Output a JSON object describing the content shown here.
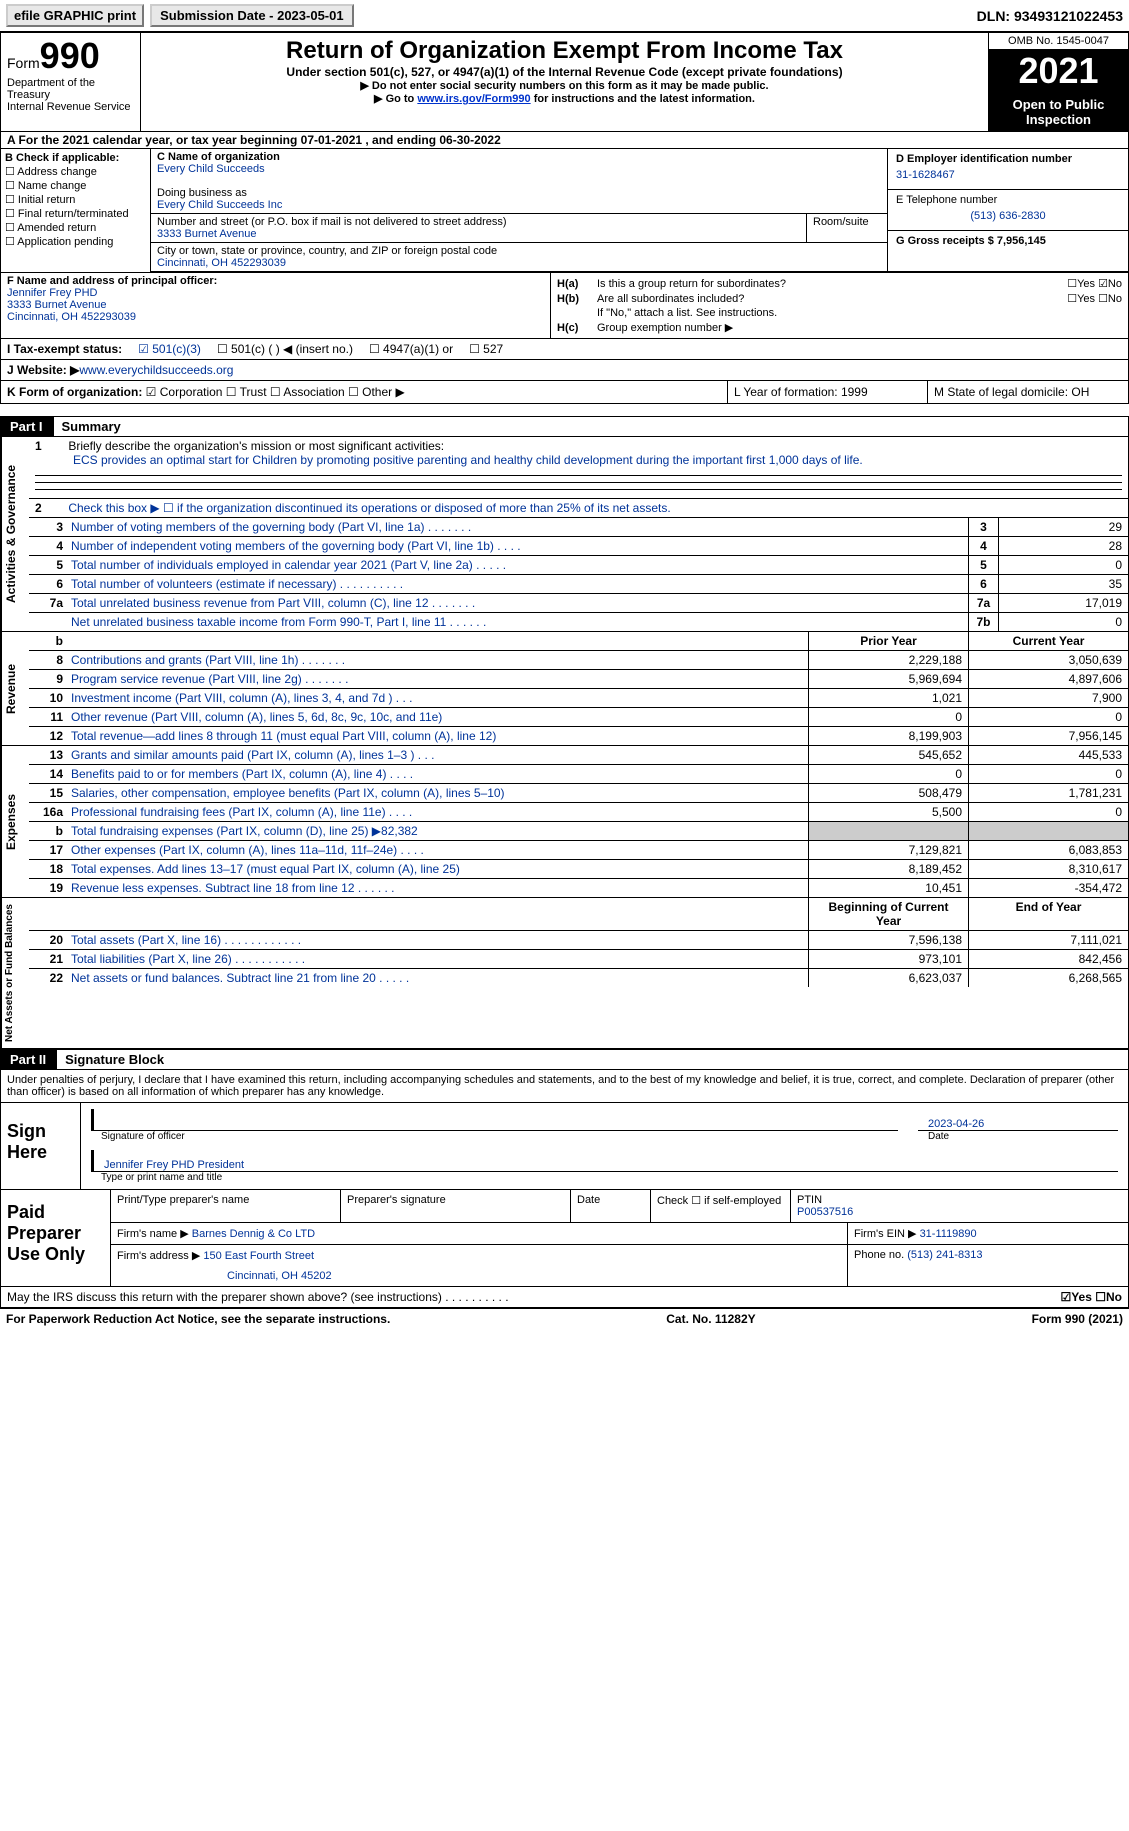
{
  "topbar": {
    "efile_label": "efile GRAPHIC print",
    "submission_label": "Submission Date - 2023-05-01",
    "dln_label": "DLN: 93493121022453"
  },
  "header": {
    "form_label": "Form",
    "form_num": "990",
    "dept": "Department of the Treasury",
    "irs": "Internal Revenue Service",
    "title": "Return of Organization Exempt From Income Tax",
    "subtitle": "Under section 501(c), 527, or 4947(a)(1) of the Internal Revenue Code (except private foundations)",
    "note1": "▶ Do not enter social security numbers on this form as it may be made public.",
    "note2_pre": "▶ Go to ",
    "note2_link": "www.irs.gov/Form990",
    "note2_post": " for instructions and the latest information.",
    "omb": "OMB No. 1545-0047",
    "year": "2021",
    "open": "Open to Public Inspection"
  },
  "rowA": "A For the 2021 calendar year, or tax year beginning 07-01-2021    , and ending 06-30-2022",
  "colB": {
    "header": "B Check if applicable:",
    "items": [
      "☐ Address change",
      "☐ Name change",
      "☐ Initial return",
      "☐ Final return/terminated",
      "☐ Amended return",
      "☐ Application pending"
    ]
  },
  "boxC": {
    "name_label": "C Name of organization",
    "name": "Every Child Succeeds",
    "dba_label": "Doing business as",
    "dba": "Every Child Succeeds Inc",
    "street_label": "Number and street (or P.O. box if mail is not delivered to street address)",
    "street": "3333 Burnet Avenue",
    "room_label": "Room/suite",
    "city_label": "City or town, state or province, country, and ZIP or foreign postal code",
    "city": "Cincinnati, OH  452293039"
  },
  "boxDEG": {
    "d_label": "D Employer identification number",
    "d_val": "31-1628467",
    "e_label": "E Telephone number",
    "e_val": "(513) 636-2830",
    "g_label": "G Gross receipts $ 7,956,145"
  },
  "rowF": {
    "label": "F Name and address of principal officer:",
    "name": "Jennifer Frey PHD",
    "street": "3333 Burnet Avenue",
    "city": "Cincinnati, OH  452293039"
  },
  "rowH": {
    "ha_label": "H(a)",
    "ha_text": "Is this a group return for subordinates?",
    "ha_boxes": "☐Yes ☑No",
    "hb_label": "H(b)",
    "hb_text": "Are all subordinates included?",
    "hb_boxes": "☐Yes ☐No",
    "hb_note": "If \"No,\" attach a list. See instructions.",
    "hc_label": "H(c)",
    "hc_text": "Group exemption number ▶"
  },
  "rowI": {
    "label": "I    Tax-exempt status:",
    "opt1": "☑ 501(c)(3)",
    "opt2": "☐  501(c) (   ) ◀ (insert no.)",
    "opt3": "☐  4947(a)(1) or",
    "opt4": "☐  527"
  },
  "rowJ": {
    "label": "J   Website: ▶",
    "val": "  www.everychildsucceeds.org"
  },
  "rowK": {
    "label": "K Form of organization:",
    "opts": "☑ Corporation ☐ Trust ☐ Association ☐ Other ▶",
    "L": "L Year of formation: 1999",
    "M": "M State of legal domicile: OH"
  },
  "part1": {
    "num": "Part I",
    "title": "Summary"
  },
  "side_labels": {
    "ag": "Activities & Governance",
    "rev": "Revenue",
    "exp": "Expenses",
    "net": "Net Assets or Fund Balances"
  },
  "mission": {
    "ln": "1",
    "label": "Briefly describe the organization's mission or most significant activities:",
    "text": "ECS provides an optimal start for Children by promoting positive parenting and healthy child development during the important first 1,000 days of life."
  },
  "line2": {
    "ln": "2",
    "text": "Check this box ▶ ☐ if the organization discontinued its operations or disposed of more than 25% of its net assets."
  },
  "ag_rows": [
    {
      "ln": "3",
      "desc": "Number of voting members of the governing body (Part VI, line 1a)  .    .    .    .    .    .    .",
      "n": "3",
      "v": "29"
    },
    {
      "ln": "4",
      "desc": "Number of independent voting members of the governing body (Part VI, line 1b)  .    .    .    .",
      "n": "4",
      "v": "28"
    },
    {
      "ln": "5",
      "desc": "Total number of individuals employed in calendar year 2021 (Part V, line 2a)  .    .    .    .    .",
      "n": "5",
      "v": "0"
    },
    {
      "ln": "6",
      "desc": "Total number of volunteers (estimate if necessary)    .    .    .    .    .    .    .    .    .    .",
      "n": "6",
      "v": "35"
    },
    {
      "ln": "7a",
      "desc": "Total unrelated business revenue from Part VIII, column (C), line 12  .    .    .    .    .    .    .",
      "n": "7a",
      "v": "17,019"
    },
    {
      "ln": "",
      "desc": "Net unrelated business taxable income from Form 990-T, Part I, line 11  .    .    .    .    .    .",
      "n": "7b",
      "v": "0"
    }
  ],
  "col_headers": {
    "b": "b",
    "prior": "Prior Year",
    "curr": "Current Year"
  },
  "rev_rows": [
    {
      "ln": "8",
      "desc": "Contributions and grants (Part VIII, line 1h)    .    .    .    .    .    .    .",
      "p": "2,229,188",
      "c": "3,050,639"
    },
    {
      "ln": "9",
      "desc": "Program service revenue (Part VIII, line 2g)    .    .    .    .    .    .    .",
      "p": "5,969,694",
      "c": "4,897,606"
    },
    {
      "ln": "10",
      "desc": "Investment income (Part VIII, column (A), lines 3, 4, and 7d )    .    .    .",
      "p": "1,021",
      "c": "7,900"
    },
    {
      "ln": "11",
      "desc": "Other revenue (Part VIII, column (A), lines 5, 6d, 8c, 9c, 10c, and 11e)",
      "p": "0",
      "c": "0"
    },
    {
      "ln": "12",
      "desc": "Total revenue—add lines 8 through 11 (must equal Part VIII, column (A), line 12)",
      "p": "8,199,903",
      "c": "7,956,145"
    }
  ],
  "exp_rows": [
    {
      "ln": "13",
      "desc": "Grants and similar amounts paid (Part IX, column (A), lines 1–3 )   .    .    .",
      "p": "545,652",
      "c": "445,533"
    },
    {
      "ln": "14",
      "desc": "Benefits paid to or for members (Part IX, column (A), line 4)   .    .    .    .",
      "p": "0",
      "c": "0"
    },
    {
      "ln": "15",
      "desc": "Salaries, other compensation, employee benefits (Part IX, column (A), lines 5–10)",
      "p": "508,479",
      "c": "1,781,231"
    },
    {
      "ln": "16a",
      "desc": "Professional fundraising fees (Part IX, column (A), line 11e)   .    .    .    .",
      "p": "5,500",
      "c": "0"
    },
    {
      "ln": "b",
      "desc": "Total fundraising expenses (Part IX, column (D), line 25) ▶82,382",
      "p": "grey",
      "c": "grey"
    },
    {
      "ln": "17",
      "desc": "Other expenses (Part IX, column (A), lines 11a–11d, 11f–24e)   .    .    .    .",
      "p": "7,129,821",
      "c": "6,083,853"
    },
    {
      "ln": "18",
      "desc": "Total expenses. Add lines 13–17 (must equal Part IX, column (A), line 25)",
      "p": "8,189,452",
      "c": "8,310,617"
    },
    {
      "ln": "19",
      "desc": "Revenue less expenses. Subtract line 18 from line 12  .    .    .    .    .    .",
      "p": "10,451",
      "c": "-354,472"
    }
  ],
  "net_headers": {
    "begin": "Beginning of Current Year",
    "end": "End of Year"
  },
  "net_rows": [
    {
      "ln": "20",
      "desc": "Total assets (Part X, line 16)  .    .    .    .    .    .    .    .    .    .    .    .",
      "p": "7,596,138",
      "c": "7,111,021"
    },
    {
      "ln": "21",
      "desc": "Total liabilities (Part X, line 26)   .    .    .    .    .    .    .    .    .    .    .",
      "p": "973,101",
      "c": "842,456"
    },
    {
      "ln": "22",
      "desc": "Net assets or fund balances. Subtract line 21 from line 20  .    .    .    .    .",
      "p": "6,623,037",
      "c": "6,268,565"
    }
  ],
  "part2": {
    "num": "Part II",
    "title": "Signature Block"
  },
  "sig": {
    "decl": "Under penalties of perjury, I declare that I have examined this return, including accompanying schedules and statements, and to the best of my knowledge and belief, it is true, correct, and complete. Declaration of preparer (other than officer) is based on all information of which preparer has any knowledge.",
    "sign_here": "Sign Here",
    "sig_date": "2023-04-26",
    "sig_of_officer": "Signature of officer",
    "date_label": "Date",
    "officer_name": "Jennifer Frey PHD  President",
    "type_name": "Type or print name and title"
  },
  "paid": {
    "label": "Paid Preparer Use Only",
    "r1": {
      "c1": "Print/Type preparer's name",
      "c2": "Preparer's signature",
      "c3": "Date",
      "c4": "Check ☐ if self-employed",
      "c5_label": "PTIN",
      "c5": "P00537516"
    },
    "r2": {
      "label": "Firm's name      ▶",
      "val": "Barnes Dennig & Co LTD",
      "ein_label": "Firm's EIN ▶",
      "ein": "31-1119890"
    },
    "r3": {
      "label": "Firm's address ▶",
      "val": "150 East Fourth Street",
      "phone_label": "Phone no.",
      "phone": "(513) 241-8313"
    },
    "r3b": "Cincinnati, OH  45202"
  },
  "discuss": {
    "text": "May the IRS discuss this return with the preparer shown above? (see instructions)   .    .    .    .    .    .    .    .    .    .",
    "boxes": "☑Yes ☐No"
  },
  "footer": {
    "left": "For Paperwork Reduction Act Notice, see the separate instructions.",
    "mid": "Cat. No. 11282Y",
    "right": "Form 990 (2021)"
  }
}
